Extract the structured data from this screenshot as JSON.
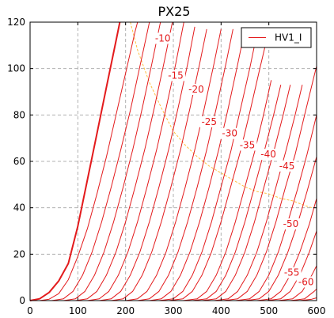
{
  "chart_data": {
    "type": "line",
    "title": "PX25",
    "xlabel": "",
    "ylabel": "",
    "xlim": [
      0,
      600
    ],
    "ylim": [
      0,
      120
    ],
    "x_ticks": [
      0,
      100,
      200,
      300,
      400,
      500,
      600
    ],
    "y_ticks": [
      0,
      20,
      40,
      60,
      80,
      100,
      120
    ],
    "grid": true,
    "legend": {
      "position": "top-right",
      "entries": [
        {
          "name": "HV1_I",
          "color": "#e31a1c"
        }
      ]
    },
    "series": [
      {
        "grid_voltage": 0,
        "label": "",
        "points": [
          [
            0,
            0
          ],
          [
            20,
            0.8
          ],
          [
            40,
            3.5
          ],
          [
            60,
            8.5
          ],
          [
            80,
            16
          ],
          [
            100,
            32
          ],
          [
            120,
            52
          ],
          [
            140,
            72
          ],
          [
            160,
            92
          ],
          [
            180,
            112
          ],
          [
            188,
            120
          ]
        ]
      },
      {
        "grid_voltage": -5,
        "label": "",
        "points": [
          [
            20,
            0
          ],
          [
            40,
            0.6
          ],
          [
            60,
            3
          ],
          [
            80,
            9
          ],
          [
            100,
            19
          ],
          [
            120,
            31
          ],
          [
            140,
            46
          ],
          [
            160,
            62
          ],
          [
            180,
            80
          ],
          [
            200,
            98
          ],
          [
            220,
            116
          ],
          [
            225,
            120
          ]
        ]
      },
      {
        "grid_voltage": -10,
        "label": "-10",
        "points": [
          [
            45,
            0
          ],
          [
            70,
            0.8
          ],
          [
            90,
            4
          ],
          [
            110,
            11
          ],
          [
            130,
            21
          ],
          [
            150,
            34
          ],
          [
            170,
            49
          ],
          [
            190,
            65
          ],
          [
            210,
            82
          ],
          [
            230,
            101
          ],
          [
            250,
            120
          ]
        ]
      },
      {
        "grid_voltage": -15,
        "label": "-15",
        "points": [
          [
            70,
            0
          ],
          [
            95,
            0.8
          ],
          [
            115,
            4
          ],
          [
            135,
            11
          ],
          [
            155,
            21
          ],
          [
            175,
            34
          ],
          [
            195,
            49
          ],
          [
            215,
            65
          ],
          [
            235,
            83
          ],
          [
            255,
            102
          ],
          [
            273,
            120
          ]
        ]
      },
      {
        "grid_voltage": -20,
        "label": "-20",
        "points": [
          [
            95,
            0
          ],
          [
            120,
            0.8
          ],
          [
            140,
            4
          ],
          [
            160,
            11
          ],
          [
            180,
            21
          ],
          [
            200,
            34
          ],
          [
            220,
            49
          ],
          [
            240,
            65
          ],
          [
            260,
            83
          ],
          [
            280,
            102
          ],
          [
            298,
            120
          ]
        ]
      },
      {
        "grid_voltage": -25,
        "label": "-25",
        "points": [
          [
            120,
            0
          ],
          [
            145,
            0.8
          ],
          [
            165,
            4
          ],
          [
            185,
            11
          ],
          [
            205,
            21
          ],
          [
            225,
            34
          ],
          [
            245,
            49
          ],
          [
            265,
            65
          ],
          [
            285,
            83
          ],
          [
            305,
            102
          ],
          [
            322,
            120
          ]
        ]
      },
      {
        "grid_voltage": -30,
        "label": "-30",
        "points": [
          [
            145,
            0
          ],
          [
            170,
            0.8
          ],
          [
            190,
            4
          ],
          [
            210,
            11
          ],
          [
            230,
            21
          ],
          [
            250,
            34
          ],
          [
            270,
            49
          ],
          [
            290,
            65
          ],
          [
            310,
            83
          ],
          [
            330,
            102
          ],
          [
            345,
            118
          ]
        ]
      },
      {
        "grid_voltage": -35,
        "label": "-35",
        "points": [
          [
            170,
            0
          ],
          [
            195,
            0.8
          ],
          [
            215,
            4
          ],
          [
            235,
            11
          ],
          [
            255,
            21
          ],
          [
            275,
            34
          ],
          [
            295,
            49
          ],
          [
            315,
            65
          ],
          [
            335,
            83
          ],
          [
            355,
            102
          ],
          [
            370,
            117
          ]
        ]
      },
      {
        "grid_voltage": -40,
        "label": "-40",
        "points": [
          [
            200,
            0
          ],
          [
            225,
            0.8
          ],
          [
            245,
            4
          ],
          [
            265,
            11
          ],
          [
            285,
            21
          ],
          [
            305,
            34
          ],
          [
            325,
            49
          ],
          [
            345,
            65
          ],
          [
            365,
            83
          ],
          [
            385,
            102
          ],
          [
            400,
            117
          ]
        ]
      },
      {
        "grid_voltage": -45,
        "label": "-45",
        "points": [
          [
            225,
            0
          ],
          [
            250,
            0.8
          ],
          [
            270,
            4
          ],
          [
            290,
            11
          ],
          [
            310,
            21
          ],
          [
            330,
            34
          ],
          [
            350,
            49
          ],
          [
            370,
            65
          ],
          [
            390,
            83
          ],
          [
            410,
            102
          ],
          [
            425,
            117
          ]
        ]
      },
      {
        "grid_voltage": -50,
        "label": "-50",
        "points": [
          [
            250,
            0
          ],
          [
            275,
            0.8
          ],
          [
            295,
            4
          ],
          [
            315,
            11
          ],
          [
            335,
            21
          ],
          [
            355,
            34
          ],
          [
            375,
            49
          ],
          [
            395,
            65
          ],
          [
            415,
            83
          ],
          [
            435,
            102
          ],
          [
            450,
            117
          ]
        ]
      },
      {
        "grid_voltage": -55,
        "label": "-55",
        "points": [
          [
            270,
            0
          ],
          [
            300,
            0.8
          ],
          [
            320,
            4
          ],
          [
            340,
            11
          ],
          [
            360,
            21
          ],
          [
            380,
            34
          ],
          [
            400,
            49
          ],
          [
            420,
            64
          ],
          [
            440,
            82
          ],
          [
            460,
            100
          ],
          [
            475,
            115
          ]
        ]
      },
      {
        "grid_voltage": -60,
        "label": "-60",
        "points": [
          [
            290,
            0
          ],
          [
            320,
            0.8
          ],
          [
            340,
            4
          ],
          [
            360,
            11
          ],
          [
            380,
            21
          ],
          [
            400,
            34
          ],
          [
            420,
            49
          ],
          [
            440,
            64
          ],
          [
            460,
            81
          ],
          [
            480,
            99
          ],
          [
            495,
            112
          ]
        ]
      },
      {
        "grid_voltage": -65,
        "label": "",
        "points": [
          [
            320,
            0
          ],
          [
            350,
            0.8
          ],
          [
            370,
            4
          ],
          [
            390,
            11
          ],
          [
            410,
            21
          ],
          [
            430,
            34
          ],
          [
            450,
            49
          ],
          [
            470,
            64
          ],
          [
            490,
            81
          ],
          [
            505,
            95
          ]
        ]
      },
      {
        "grid_voltage": -70,
        "label": "",
        "points": [
          [
            340,
            0
          ],
          [
            370,
            0.8
          ],
          [
            390,
            4
          ],
          [
            410,
            11
          ],
          [
            430,
            21
          ],
          [
            450,
            34
          ],
          [
            470,
            49
          ],
          [
            490,
            64
          ],
          [
            510,
            80
          ],
          [
            525,
            93
          ]
        ]
      },
      {
        "grid_voltage": -75,
        "label": "",
        "points": [
          [
            360,
            0
          ],
          [
            390,
            0.8
          ],
          [
            410,
            4
          ],
          [
            430,
            11
          ],
          [
            450,
            21
          ],
          [
            470,
            34
          ],
          [
            490,
            49
          ],
          [
            510,
            64
          ],
          [
            530,
            80
          ],
          [
            545,
            93
          ]
        ]
      },
      {
        "grid_voltage": -80,
        "label": "",
        "points": [
          [
            385,
            0
          ],
          [
            415,
            0.8
          ],
          [
            435,
            4
          ],
          [
            455,
            11
          ],
          [
            475,
            21
          ],
          [
            495,
            34
          ],
          [
            515,
            49
          ],
          [
            535,
            64
          ],
          [
            555,
            80
          ],
          [
            570,
            93
          ]
        ]
      },
      {
        "grid_voltage": -85,
        "label": "",
        "points": [
          [
            405,
            0
          ],
          [
            435,
            0.8
          ],
          [
            455,
            4
          ],
          [
            475,
            11
          ],
          [
            495,
            21
          ],
          [
            515,
            34
          ],
          [
            535,
            49
          ],
          [
            555,
            63
          ],
          [
            575,
            80
          ],
          [
            595,
            97
          ],
          [
            600,
            101
          ]
        ]
      },
      {
        "grid_voltage": -90,
        "label": "",
        "points": [
          [
            430,
            0
          ],
          [
            460,
            0.8
          ],
          [
            480,
            4
          ],
          [
            500,
            11
          ],
          [
            520,
            21
          ],
          [
            540,
            34
          ],
          [
            560,
            48
          ],
          [
            580,
            63
          ],
          [
            600,
            80
          ]
        ]
      },
      {
        "grid_voltage": -95,
        "label": "",
        "points": [
          [
            450,
            0
          ],
          [
            480,
            0.8
          ],
          [
            500,
            4
          ],
          [
            520,
            11
          ],
          [
            540,
            21
          ],
          [
            560,
            33
          ],
          [
            580,
            47
          ],
          [
            600,
            62
          ]
        ]
      },
      {
        "grid_voltage": -100,
        "label": "",
        "points": [
          [
            475,
            0
          ],
          [
            505,
            0.8
          ],
          [
            525,
            4
          ],
          [
            545,
            11
          ],
          [
            565,
            21
          ],
          [
            585,
            33
          ],
          [
            600,
            44
          ]
        ]
      },
      {
        "grid_voltage": -105,
        "label": "",
        "points": [
          [
            495,
            0
          ],
          [
            525,
            0.8
          ],
          [
            545,
            4
          ],
          [
            565,
            11
          ],
          [
            585,
            21
          ],
          [
            600,
            30
          ]
        ]
      },
      {
        "grid_voltage": -110,
        "label": "",
        "points": [
          [
            520,
            0
          ],
          [
            550,
            0.8
          ],
          [
            570,
            4
          ],
          [
            590,
            11
          ],
          [
            600,
            15
          ]
        ]
      },
      {
        "grid_voltage": -115,
        "label": "",
        "points": [
          [
            545,
            0
          ],
          [
            575,
            0.8
          ],
          [
            595,
            4
          ],
          [
            600,
            5
          ]
        ]
      },
      {
        "grid_voltage": -120,
        "label": "",
        "points": [
          [
            565,
            0
          ],
          [
            590,
            0.6
          ],
          [
            600,
            1.2
          ]
        ]
      }
    ],
    "curve_labels": [
      {
        "text": "-10",
        "x": 278,
        "y": 112
      },
      {
        "text": "-15",
        "x": 305,
        "y": 96
      },
      {
        "text": "-20",
        "x": 348,
        "y": 90
      },
      {
        "text": "-25",
        "x": 375,
        "y": 76
      },
      {
        "text": "-30",
        "x": 418,
        "y": 71
      },
      {
        "text": "-35",
        "x": 455,
        "y": 66
      },
      {
        "text": "-40",
        "x": 499,
        "y": 62
      },
      {
        "text": "-45",
        "x": 538,
        "y": 57
      },
      {
        "text": "-50",
        "x": 546,
        "y": 32
      },
      {
        "text": "-55",
        "x": 548,
        "y": 11
      },
      {
        "text": "-60",
        "x": 578,
        "y": 7
      }
    ],
    "dissipation_curve": {
      "color": "#ffbf3f",
      "points": [
        [
          210,
          120
        ],
        [
          225,
          108
        ],
        [
          250,
          94
        ],
        [
          275,
          83
        ],
        [
          300,
          73
        ],
        [
          325,
          67
        ],
        [
          350,
          62
        ],
        [
          375,
          58
        ],
        [
          400,
          55
        ],
        [
          425,
          52
        ],
        [
          450,
          49
        ],
        [
          475,
          47
        ],
        [
          500,
          46
        ],
        [
          525,
          44
        ],
        [
          550,
          43
        ],
        [
          575,
          41
        ],
        [
          590,
          40
        ]
      ]
    },
    "colors": {
      "curve": "#e31a1c",
      "grid": "#b0b0b0",
      "axis": "#000000"
    }
  }
}
